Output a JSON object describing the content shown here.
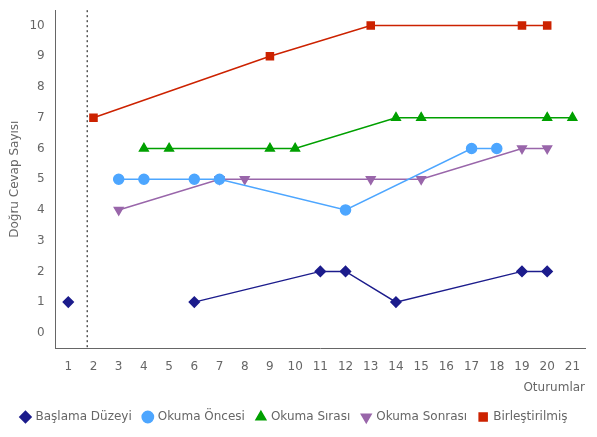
{
  "chart_data": {
    "type": "line",
    "xlabel": "Oturumlar",
    "ylabel": "Doğru Cevap Sayısı",
    "xlim": [
      0.5,
      21.5
    ],
    "ylim": [
      -0.5,
      10.5
    ],
    "xticks": [
      1,
      2,
      3,
      4,
      5,
      6,
      7,
      8,
      9,
      10,
      11,
      12,
      13,
      14,
      15,
      16,
      17,
      18,
      19,
      20,
      21
    ],
    "yticks": [
      0,
      1,
      2,
      3,
      4,
      5,
      6,
      7,
      8,
      9,
      10
    ],
    "grid": false,
    "legend": "bottom",
    "vlines": [
      1.75
    ],
    "series": [
      {
        "name": "Başlama Düzeyi",
        "color": "#1C1C8C",
        "marker": "diamond",
        "x": [
          1,
          null,
          6,
          11,
          12,
          14,
          19,
          20
        ],
        "values": [
          1,
          null,
          1,
          2,
          2,
          1,
          2,
          2
        ]
      },
      {
        "name": "Okuma Öncesi",
        "color": "#4DA6FF",
        "marker": "circle",
        "x": [
          3,
          4,
          6,
          7,
          12,
          17,
          18
        ],
        "values": [
          5,
          5,
          5,
          5,
          4,
          6,
          6
        ]
      },
      {
        "name": "Okuma Sırası",
        "color": "#00A000",
        "marker": "triangle_up",
        "x": [
          4,
          5,
          9,
          10,
          14,
          15,
          20,
          21
        ],
        "values": [
          6,
          6,
          6,
          6,
          7,
          7,
          7,
          7
        ]
      },
      {
        "name": "Okuma Sonrası",
        "color": "#9966AA",
        "marker": "triangle_down",
        "x": [
          3,
          7,
          8,
          13,
          15,
          19,
          20
        ],
        "values": [
          4,
          5,
          5,
          5,
          5,
          6,
          6
        ]
      },
      {
        "name": "Birleştirilmiş",
        "color": "#CC2200",
        "marker": "square",
        "x": [
          2,
          9,
          13,
          19,
          20
        ],
        "values": [
          7,
          9,
          10,
          10,
          10
        ]
      }
    ]
  }
}
